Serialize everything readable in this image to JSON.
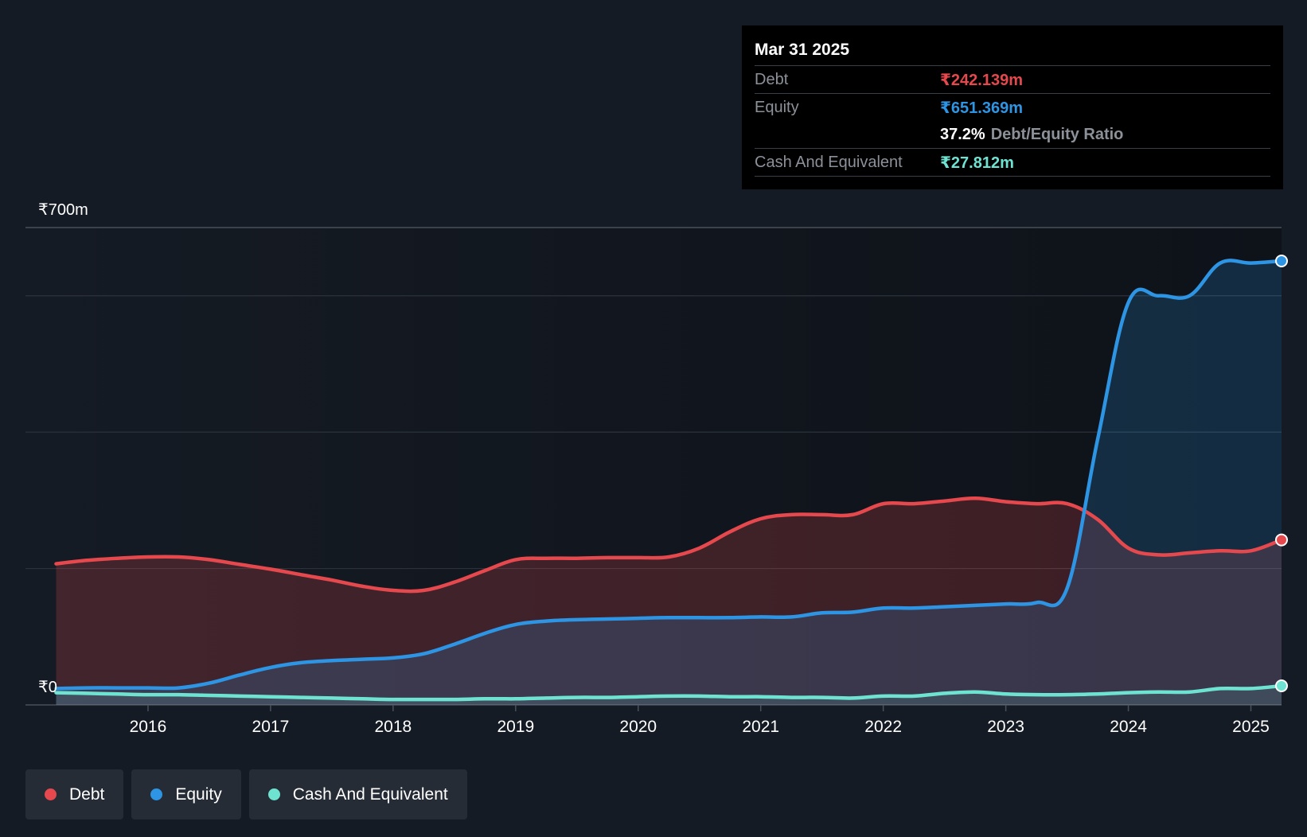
{
  "tooltip": {
    "date": "Mar 31 2025",
    "debt_label": "Debt",
    "debt_value": "₹242.139m",
    "equity_label": "Equity",
    "equity_value": "₹651.369m",
    "ratio_value": "37.2%",
    "ratio_label": "Debt/Equity Ratio",
    "cash_label": "Cash And Equivalent",
    "cash_value": "₹27.812m"
  },
  "legend": {
    "debt": "Debt",
    "equity": "Equity",
    "cash": "Cash And Equivalent"
  },
  "colors": {
    "debt": "#e5484d",
    "equity": "#2d95e3",
    "cash": "#6fe3d2",
    "background": "#151b24"
  },
  "chart_data": {
    "type": "area",
    "title": "",
    "xlabel": "",
    "ylabel": "",
    "ylim": [
      0,
      700
    ],
    "y_tick_labels": [
      "₹0",
      "₹700m"
    ],
    "x_tick_labels": [
      "2016",
      "2017",
      "2018",
      "2019",
      "2020",
      "2021",
      "2022",
      "2023",
      "2024",
      "2025"
    ],
    "x_ticks": [
      2016,
      2017,
      2018,
      2019,
      2020,
      2021,
      2022,
      2023,
      2024,
      2025
    ],
    "xlim": [
      2015.0,
      2025.25
    ],
    "gridlines": [
      0,
      200,
      400,
      600,
      700
    ],
    "series": [
      {
        "name": "Debt",
        "x": [
          2015.25,
          2015.5,
          2015.75,
          2016.0,
          2016.25,
          2016.5,
          2016.75,
          2017.0,
          2017.25,
          2017.5,
          2017.75,
          2018.0,
          2018.25,
          2018.5,
          2018.75,
          2019.0,
          2019.25,
          2019.5,
          2019.75,
          2020.0,
          2020.25,
          2020.5,
          2020.75,
          2021.0,
          2021.25,
          2021.5,
          2021.75,
          2022.0,
          2022.25,
          2022.5,
          2022.75,
          2023.0,
          2023.25,
          2023.5,
          2023.75,
          2024.0,
          2024.25,
          2024.5,
          2024.75,
          2025.0,
          2025.25
        ],
        "values": [
          207,
          212,
          215,
          217,
          217,
          213,
          206,
          199,
          191,
          183,
          174,
          168,
          168,
          180,
          197,
          213,
          215,
          215,
          216,
          216,
          217,
          230,
          254,
          273,
          279,
          279,
          279,
          295,
          295,
          299,
          303,
          298,
          295,
          295,
          272,
          230,
          220,
          223,
          226,
          226,
          242
        ]
      },
      {
        "name": "Equity",
        "x": [
          2015.25,
          2015.5,
          2015.75,
          2016.0,
          2016.25,
          2016.5,
          2016.75,
          2017.0,
          2017.25,
          2017.5,
          2017.75,
          2018.0,
          2018.25,
          2018.5,
          2018.75,
          2019.0,
          2019.25,
          2019.5,
          2019.75,
          2020.0,
          2020.25,
          2020.5,
          2020.75,
          2021.0,
          2021.25,
          2021.5,
          2021.75,
          2022.0,
          2022.25,
          2022.5,
          2022.75,
          2023.0,
          2023.25,
          2023.5,
          2023.75,
          2024.0,
          2024.25,
          2024.5,
          2024.75,
          2025.0,
          2025.25
        ],
        "values": [
          24,
          25,
          25,
          25,
          25,
          32,
          44,
          55,
          62,
          65,
          67,
          69,
          75,
          89,
          105,
          118,
          123,
          125,
          126,
          127,
          128,
          128,
          128,
          129,
          129,
          135,
          136,
          142,
          142,
          144,
          146,
          148,
          150,
          171,
          390,
          590,
          600,
          600,
          648,
          648,
          651
        ]
      },
      {
        "name": "Cash And Equivalent",
        "x": [
          2015.25,
          2015.5,
          2015.75,
          2016.0,
          2016.25,
          2016.5,
          2016.75,
          2017.0,
          2017.25,
          2017.5,
          2017.75,
          2018.0,
          2018.25,
          2018.5,
          2018.75,
          2019.0,
          2019.25,
          2019.5,
          2019.75,
          2020.0,
          2020.25,
          2020.5,
          2020.75,
          2021.0,
          2021.25,
          2021.5,
          2021.75,
          2022.0,
          2022.25,
          2022.5,
          2022.75,
          2023.0,
          2023.25,
          2023.5,
          2023.75,
          2024.0,
          2024.25,
          2024.5,
          2024.75,
          2025.0,
          2025.25
        ],
        "values": [
          18,
          17,
          16,
          15,
          15,
          14,
          13,
          12,
          11,
          10,
          9,
          8,
          8,
          8,
          9,
          9,
          10,
          11,
          11,
          12,
          13,
          13,
          12,
          12,
          11,
          11,
          10,
          13,
          13,
          17,
          19,
          16,
          15,
          15,
          16,
          18,
          19,
          19,
          24,
          24,
          28
        ]
      }
    ]
  }
}
